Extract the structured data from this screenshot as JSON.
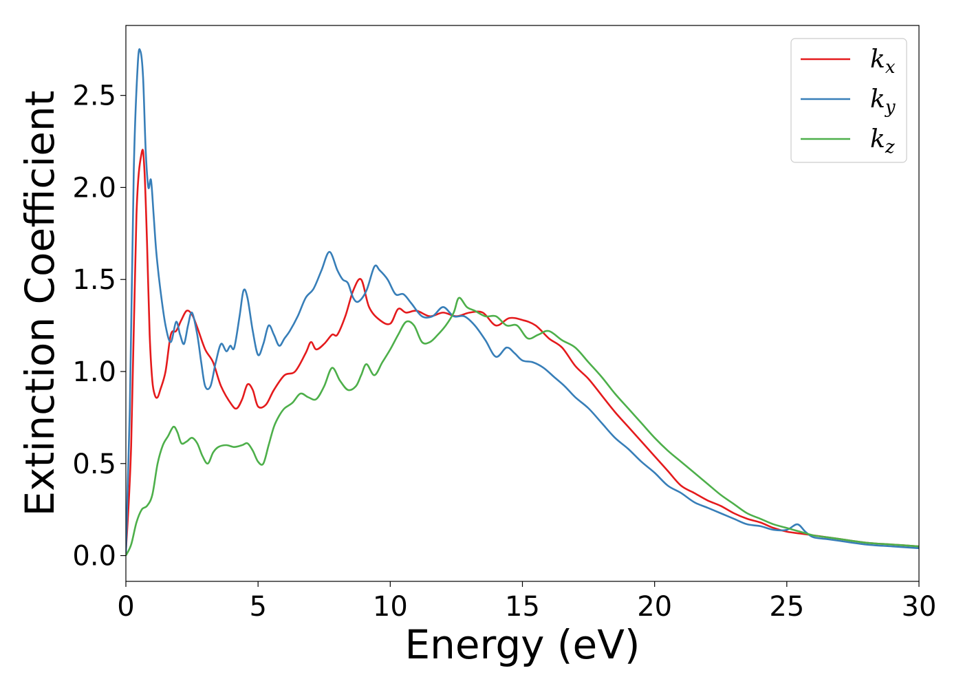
{
  "chart_data": {
    "type": "line",
    "title": "",
    "xlabel": "Energy (eV)",
    "ylabel": "Extinction Coefficient",
    "xlim": [
      0,
      30
    ],
    "ylim": [
      -0.14,
      2.88
    ],
    "xticks": [
      0,
      5,
      10,
      15,
      20,
      25,
      30
    ],
    "xtick_labels": [
      "0",
      "5",
      "10",
      "15",
      "20",
      "25",
      "30"
    ],
    "yticks": [
      0.0,
      0.5,
      1.0,
      1.5,
      2.0,
      2.5
    ],
    "ytick_labels": [
      "0.0",
      "0.5",
      "1.0",
      "1.5",
      "2.0",
      "2.5"
    ],
    "grid": false,
    "legend_position": "top-right",
    "series": [
      {
        "name": "k",
        "subscript": "x",
        "color": "#e41a1c",
        "x": [
          0,
          0.2,
          0.4,
          0.6,
          0.7,
          0.8,
          0.9,
          1.0,
          1.1,
          1.2,
          1.3,
          1.5,
          1.7,
          1.9,
          2.1,
          2.3,
          2.5,
          2.7,
          3.0,
          3.3,
          3.6,
          4.0,
          4.2,
          4.4,
          4.6,
          4.8,
          5.0,
          5.3,
          5.6,
          6.0,
          6.4,
          6.8,
          7.0,
          7.2,
          7.5,
          7.8,
          8.0,
          8.3,
          8.6,
          8.9,
          9.2,
          9.6,
          10.0,
          10.3,
          10.6,
          11.0,
          11.5,
          12.0,
          12.5,
          13.0,
          13.5,
          14.0,
          14.5,
          15.0,
          15.5,
          16.0,
          16.5,
          17.0,
          17.5,
          18.0,
          18.5,
          19.0,
          19.5,
          20.0,
          20.5,
          21.0,
          21.5,
          22.0,
          22.5,
          23.0,
          23.5,
          24.0,
          24.5,
          25.0,
          25.5,
          26.0,
          26.5,
          27.0,
          28.0,
          29.0,
          30.0
        ],
        "y": [
          0.02,
          0.6,
          1.85,
          2.19,
          2.1,
          1.7,
          1.2,
          0.95,
          0.87,
          0.86,
          0.9,
          1.0,
          1.2,
          1.22,
          1.28,
          1.33,
          1.31,
          1.24,
          1.12,
          1.05,
          0.92,
          0.82,
          0.8,
          0.85,
          0.93,
          0.9,
          0.81,
          0.82,
          0.9,
          0.98,
          1.0,
          1.1,
          1.16,
          1.12,
          1.15,
          1.2,
          1.2,
          1.3,
          1.44,
          1.5,
          1.35,
          1.28,
          1.26,
          1.34,
          1.32,
          1.33,
          1.3,
          1.32,
          1.3,
          1.32,
          1.32,
          1.25,
          1.29,
          1.28,
          1.25,
          1.18,
          1.13,
          1.03,
          0.96,
          0.87,
          0.78,
          0.7,
          0.62,
          0.54,
          0.46,
          0.38,
          0.34,
          0.3,
          0.27,
          0.23,
          0.2,
          0.18,
          0.15,
          0.13,
          0.12,
          0.11,
          0.1,
          0.09,
          0.07,
          0.06,
          0.05
        ]
      },
      {
        "name": "k",
        "subscript": "y",
        "color": "#377eb8",
        "x": [
          0,
          0.15,
          0.3,
          0.45,
          0.55,
          0.65,
          0.75,
          0.85,
          0.95,
          1.05,
          1.15,
          1.3,
          1.5,
          1.7,
          1.9,
          2.05,
          2.2,
          2.35,
          2.5,
          2.7,
          2.85,
          3.0,
          3.2,
          3.4,
          3.6,
          3.8,
          3.95,
          4.1,
          4.3,
          4.45,
          4.6,
          4.8,
          5.0,
          5.2,
          5.4,
          5.6,
          5.8,
          6.0,
          6.2,
          6.5,
          6.8,
          7.1,
          7.4,
          7.7,
          8.0,
          8.2,
          8.4,
          8.6,
          8.8,
          9.1,
          9.4,
          9.6,
          9.9,
          10.2,
          10.5,
          10.8,
          11.2,
          11.6,
          12.0,
          12.4,
          12.8,
          13.2,
          13.6,
          14.0,
          14.4,
          14.7,
          15.0,
          15.4,
          15.8,
          16.2,
          16.6,
          17.0,
          17.5,
          18.0,
          18.5,
          19.0,
          19.5,
          20.0,
          20.5,
          21.0,
          21.5,
          22.0,
          22.5,
          23.0,
          23.5,
          24.0,
          24.5,
          25.0,
          25.4,
          25.7,
          26.0,
          26.5,
          27.0,
          28.0,
          29.0,
          30.0
        ],
        "y": [
          0.01,
          0.8,
          2.1,
          2.67,
          2.74,
          2.6,
          2.2,
          2.0,
          2.04,
          1.85,
          1.65,
          1.45,
          1.25,
          1.16,
          1.27,
          1.2,
          1.15,
          1.25,
          1.32,
          1.2,
          1.05,
          0.92,
          0.92,
          1.05,
          1.15,
          1.11,
          1.14,
          1.13,
          1.3,
          1.44,
          1.4,
          1.22,
          1.09,
          1.15,
          1.25,
          1.2,
          1.14,
          1.18,
          1.22,
          1.3,
          1.4,
          1.45,
          1.55,
          1.65,
          1.55,
          1.5,
          1.48,
          1.4,
          1.38,
          1.44,
          1.57,
          1.55,
          1.5,
          1.42,
          1.42,
          1.37,
          1.3,
          1.3,
          1.35,
          1.3,
          1.3,
          1.25,
          1.17,
          1.08,
          1.13,
          1.1,
          1.06,
          1.05,
          1.02,
          0.97,
          0.92,
          0.86,
          0.8,
          0.72,
          0.64,
          0.58,
          0.51,
          0.45,
          0.38,
          0.34,
          0.29,
          0.26,
          0.23,
          0.2,
          0.17,
          0.16,
          0.14,
          0.14,
          0.17,
          0.13,
          0.1,
          0.09,
          0.08,
          0.06,
          0.05,
          0.04
        ]
      },
      {
        "name": "k",
        "subscript": "z",
        "color": "#4daf4a",
        "x": [
          0,
          0.2,
          0.4,
          0.6,
          0.8,
          1.0,
          1.2,
          1.4,
          1.6,
          1.8,
          1.95,
          2.1,
          2.3,
          2.5,
          2.7,
          2.9,
          3.1,
          3.3,
          3.5,
          3.8,
          4.1,
          4.4,
          4.6,
          4.8,
          5.0,
          5.2,
          5.4,
          5.6,
          5.8,
          6.0,
          6.3,
          6.6,
          6.9,
          7.2,
          7.5,
          7.8,
          8.1,
          8.4,
          8.7,
          8.9,
          9.1,
          9.4,
          9.7,
          10.0,
          10.3,
          10.6,
          10.9,
          11.2,
          11.5,
          11.8,
          12.1,
          12.4,
          12.6,
          12.9,
          13.2,
          13.6,
          14.0,
          14.4,
          14.8,
          15.2,
          15.6,
          16.0,
          16.5,
          17.0,
          17.5,
          18.0,
          18.5,
          19.0,
          19.5,
          20.0,
          20.5,
          21.0,
          21.5,
          22.0,
          22.5,
          23.0,
          23.5,
          24.0,
          24.5,
          25.0,
          25.5,
          26.0,
          26.5,
          27.0,
          28.0,
          29.0,
          30.0
        ],
        "y": [
          0.0,
          0.06,
          0.18,
          0.25,
          0.27,
          0.33,
          0.5,
          0.6,
          0.65,
          0.7,
          0.67,
          0.61,
          0.62,
          0.64,
          0.61,
          0.54,
          0.5,
          0.56,
          0.59,
          0.6,
          0.59,
          0.6,
          0.61,
          0.57,
          0.51,
          0.5,
          0.6,
          0.7,
          0.76,
          0.8,
          0.83,
          0.88,
          0.86,
          0.85,
          0.92,
          1.02,
          0.95,
          0.9,
          0.92,
          0.98,
          1.04,
          0.98,
          1.05,
          1.12,
          1.2,
          1.27,
          1.25,
          1.16,
          1.16,
          1.2,
          1.25,
          1.32,
          1.4,
          1.35,
          1.33,
          1.3,
          1.3,
          1.25,
          1.25,
          1.18,
          1.2,
          1.22,
          1.17,
          1.13,
          1.05,
          0.97,
          0.88,
          0.8,
          0.72,
          0.64,
          0.57,
          0.51,
          0.45,
          0.39,
          0.33,
          0.28,
          0.23,
          0.2,
          0.17,
          0.15,
          0.13,
          0.11,
          0.1,
          0.09,
          0.07,
          0.06,
          0.05
        ]
      }
    ]
  }
}
